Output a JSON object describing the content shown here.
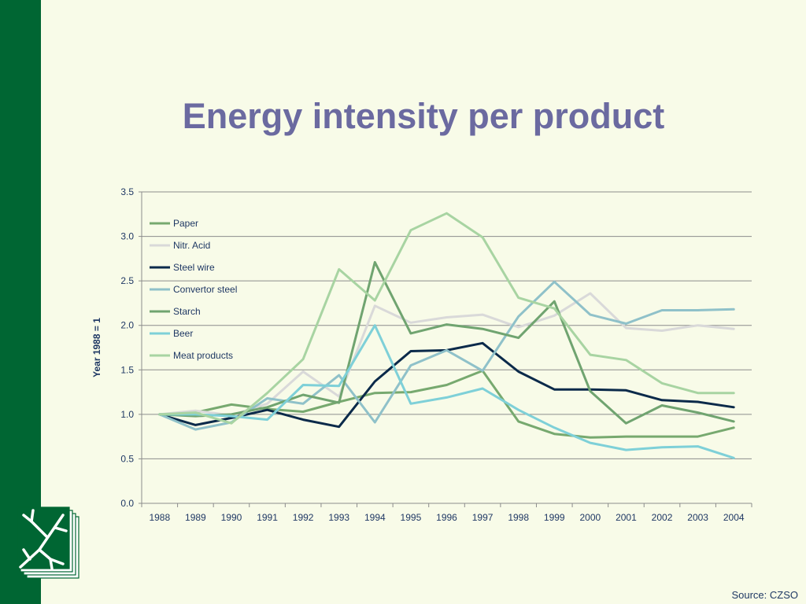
{
  "title": "Energy intensity per product",
  "source": "Source: CZSO",
  "chart_data": {
    "type": "line",
    "ylabel": "Year 1988 = 1",
    "xlabel": "",
    "ylim": [
      0,
      3.5
    ],
    "yticks": [
      "0.0",
      "0.5",
      "1.0",
      "1.5",
      "2.0",
      "2.5",
      "3.0",
      "3.5"
    ],
    "grid": true,
    "legend_position": "top-left",
    "categories": [
      "1988",
      "1989",
      "1990",
      "1991",
      "1992",
      "1993",
      "1994",
      "1995",
      "1996",
      "1997",
      "1998",
      "1999",
      "2000",
      "2001",
      "2002",
      "2003",
      "2004"
    ],
    "series": [
      {
        "name": "Paper",
        "color": "#77a96f",
        "values": [
          1.0,
          1.02,
          1.11,
          1.06,
          1.03,
          1.14,
          1.24,
          1.25,
          1.33,
          1.49,
          0.92,
          0.78,
          0.74,
          0.75,
          0.75,
          0.75,
          0.85
        ]
      },
      {
        "name": "Nitr. Acid",
        "color": "#d9d9d9",
        "values": [
          1.0,
          1.04,
          0.99,
          1.12,
          1.48,
          1.2,
          2.22,
          2.03,
          2.09,
          2.12,
          1.98,
          2.11,
          2.36,
          1.97,
          1.94,
          2.0,
          1.96
        ]
      },
      {
        "name": "Steel wire",
        "color": "#0b2a4a",
        "values": [
          1.0,
          0.88,
          0.96,
          1.05,
          0.94,
          0.86,
          1.37,
          1.71,
          1.72,
          1.8,
          1.48,
          1.28,
          1.28,
          1.27,
          1.16,
          1.14,
          1.08
        ]
      },
      {
        "name": "Convertor steel",
        "color": "#8fc1c9",
        "values": [
          1.0,
          0.83,
          0.91,
          1.18,
          1.12,
          1.44,
          0.91,
          1.55,
          1.72,
          1.49,
          2.1,
          2.49,
          2.12,
          2.02,
          2.17,
          2.17,
          2.18
        ]
      },
      {
        "name": "Starch",
        "color": "#70a470",
        "values": [
          1.0,
          0.98,
          1.0,
          1.08,
          1.22,
          1.13,
          2.71,
          1.91,
          2.01,
          1.96,
          1.86,
          2.27,
          1.26,
          0.9,
          1.1,
          1.02,
          0.92
        ]
      },
      {
        "name": "Beer",
        "color": "#7ed0d8",
        "values": [
          1.0,
          1.0,
          0.98,
          0.94,
          1.33,
          1.32,
          2.0,
          1.12,
          1.19,
          1.29,
          1.05,
          0.85,
          0.68,
          0.6,
          0.63,
          0.64,
          0.51
        ]
      },
      {
        "name": "Meat products",
        "color": "#a8d4a2",
        "values": [
          1.0,
          1.02,
          0.9,
          1.24,
          1.62,
          2.63,
          2.28,
          3.07,
          3.26,
          2.99,
          2.31,
          2.19,
          1.67,
          1.61,
          1.35,
          1.24,
          1.24
        ]
      }
    ]
  }
}
